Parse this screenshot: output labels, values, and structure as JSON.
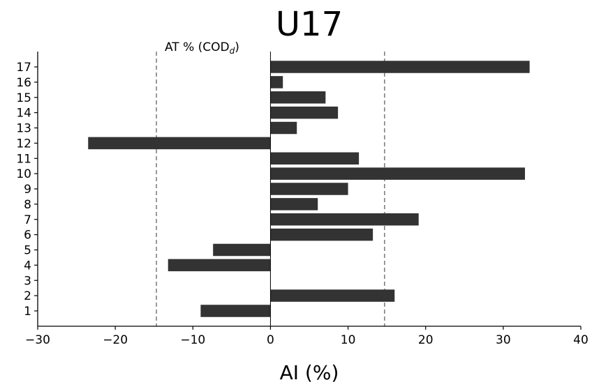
{
  "chart_data": {
    "type": "bar",
    "orientation": "horizontal",
    "title": "U17",
    "xlabel": "AI (%)",
    "ylabel": "",
    "xlim": [
      -30,
      40
    ],
    "xticks": [
      -30,
      -20,
      -10,
      0,
      10,
      20,
      30,
      40
    ],
    "xtick_labels": [
      "−30",
      "−20",
      "−10",
      "0",
      "10",
      "20",
      "30",
      "40"
    ],
    "categories": [
      "1",
      "2",
      "3",
      "4",
      "5",
      "6",
      "7",
      "8",
      "9",
      "10",
      "11",
      "12",
      "13",
      "14",
      "15",
      "16",
      "17"
    ],
    "values": [
      -9.0,
      16.0,
      0.0,
      -13.2,
      -7.4,
      13.2,
      19.1,
      6.1,
      10.0,
      32.8,
      11.4,
      -23.5,
      3.4,
      8.7,
      7.1,
      1.6,
      33.4
    ],
    "bar_color": "#333333",
    "reference_lines": [
      -14.7,
      14.7
    ],
    "reference_line_color": "#808080",
    "annotation": {
      "text": "AT % (COD",
      "subscript": "d",
      "suffix": ")"
    },
    "grid": false
  }
}
